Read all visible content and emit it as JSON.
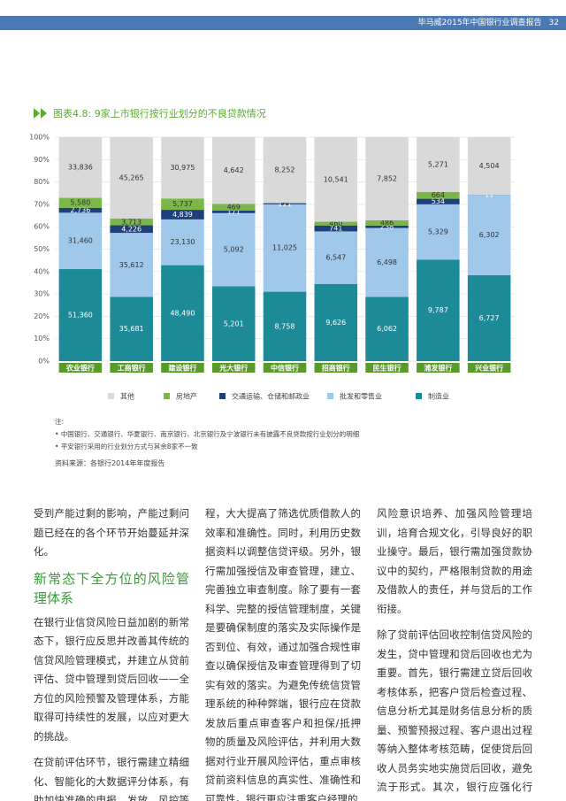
{
  "header": {
    "title": "毕马威2015年中国银行业调查报告",
    "page": "32"
  },
  "chart_data": {
    "type": "stacked_percent_bar",
    "title": "图表4.8: 9家上市银行按行业划分的不良贷款情况",
    "categories": [
      "农业银行",
      "工商银行",
      "建设银行",
      "光大银行",
      "中信银行",
      "招商银行",
      "民生银行",
      "浦发银行",
      "兴业银行"
    ],
    "ylim": [
      0,
      100
    ],
    "yticks": [
      {
        "value": 0,
        "label": "0%"
      },
      {
        "value": 10,
        "label": "10%"
      },
      {
        "value": 20,
        "label": "20%"
      },
      {
        "value": 30,
        "label": "30%"
      },
      {
        "value": 40,
        "label": "40%"
      },
      {
        "value": 50,
        "label": "50%"
      },
      {
        "value": 60,
        "label": "60%"
      },
      {
        "value": 70,
        "label": "70%"
      },
      {
        "value": 80,
        "label": "80%"
      },
      {
        "value": 90,
        "label": "90%"
      },
      {
        "value": 100,
        "label": "100%"
      }
    ],
    "grid": true,
    "series": [
      {
        "name": "其他",
        "color": "#d9d9d9",
        "values": [
          33836,
          45265,
          30975,
          4642,
          8252,
          10541,
          7852,
          5271,
          4504
        ],
        "value_labels": [
          "33,836",
          "45,265",
          "30,975",
          "4,642",
          "8,252",
          "10,541",
          "7,852",
          "5,271",
          "4,504"
        ]
      },
      {
        "name": "房地产",
        "color": "#7ab648",
        "values": [
          5580,
          3713,
          5737,
          469,
          96,
          460,
          486,
          664,
          null
        ],
        "value_labels": [
          "5,580",
          "3,713",
          "5,737",
          "469",
          "96",
          "460",
          "486",
          "664",
          null
        ]
      },
      {
        "name": "交通运输、仓储和邮政业",
        "color": "#1f3f7a",
        "values": [
          2736,
          4226,
          4839,
          171,
          121,
          741,
          238,
          534,
          11
        ],
        "value_labels": [
          "2,736",
          "4,226",
          "4,839",
          "171",
          "121",
          "741",
          "238",
          "534",
          "11"
        ]
      },
      {
        "name": "批发和零售业",
        "color": "#9fc8ea",
        "values": [
          31460,
          35612,
          23130,
          5092,
          11025,
          6547,
          6498,
          5329,
          6302
        ],
        "value_labels": [
          "31,460",
          "35,612",
          "23,130",
          "5,092",
          "11,025",
          "6,547",
          "6,498",
          "5,329",
          "6,302"
        ]
      },
      {
        "name": "制造业",
        "color": "#1d8a98",
        "values": [
          51360,
          35681,
          48490,
          5201,
          8758,
          9626,
          6062,
          9787,
          6727
        ],
        "value_labels": [
          "51,360",
          "35,681",
          "48,490",
          "5,201",
          "8,758",
          "9,626",
          "6,062",
          "9,787",
          "6,727"
        ]
      }
    ]
  },
  "notes": {
    "label": "注:",
    "items": [
      "中国银行、交通银行、华夏银行、南京银行、北京银行及宁波银行未有披露不良贷款按行业划分的明细",
      "平安银行采用的行业划分方式与其余8家不一致"
    ]
  },
  "source": "资料来源：各银行2014年年度报告",
  "body": {
    "col1_p1": "受到产能过剩的影响，产能过剩问题已经在的各个环节开始蔓延并深化。",
    "heading": "新常态下全方位的风险管理体系",
    "col1_p2": "在银行业信贷风险日益加剧的新常态下，银行应反思并改善其传统的信贷风险管理模式，并建立从贷前评估、贷中管理到贷后回收——全方位的风险预警及管理体系，方能取得可持续性的发展，以应对更大的挑战。",
    "col1_p3": "在贷前评估环节，银行需建立精细化、智能化的大数据评分体系，有助加快准确的申报、发放、风控等流",
    "col2_p1": "程，大大提高了筛选优质借款人的效率和准确性。同时，利用历史数据资料以调整信贷评级。另外，银行需加强授信及审查管理，建立、完善独立审查制度。除了要有一套科学、完整的授信管理制度，关键是要确保制度的落实及实际操作是否到位、有效，通过加强合规性审查以确保授信及审查管理得到了切实有效的落实。为避免传统信贷管理系统的种种弊端，银行应在贷款发放后重点审查客户和担保/抵押物的质量及风险评估，并利用大数据对行业开展风险评估，重点审核贷前资料信息的真实性、准确性和可靠性。银行更应注重客户经理的",
    "col3_p1": "风险意识培养、加强风险管理培训，培育合规文化，引导良好的职业操守。最后，银行需加强贷款协议中的契约，严格限制贷款的用途及借款人的责任，并与贷后的工作衔接。",
    "col3_p2": "除了贷前评估回收控制信贷风险的发生，贷中管理和贷后回收也尤为重要。首先，银行需建立贷后回收考核体系，把客户贷后检查过程、信息分析尤其是财务信息分析的质量、预警预报过程、客户退出过程等纳入整体考核范畴，促使贷后回收人员务实地实施贷后回收，避免流于形式。其次，银行应强化行业、产业、政"
  }
}
